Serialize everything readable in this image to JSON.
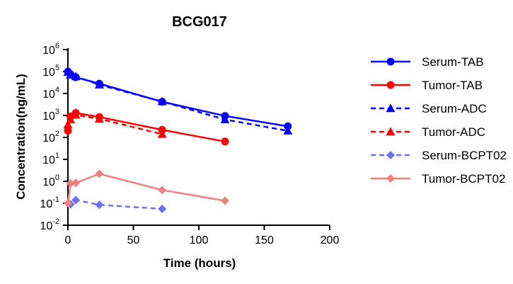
{
  "chart_data": {
    "type": "line",
    "title": "BCG017",
    "xlabel": "Time (hours)",
    "ylabel": "Concentration(ng/mL)",
    "xlim": [
      0,
      200
    ],
    "ylim": [
      0.01,
      1000000
    ],
    "yscale": "log",
    "x_ticks": [
      "0",
      "50",
      "100",
      "150",
      "200"
    ],
    "y_ticks": [
      {
        "base": "10",
        "exp": "-2"
      },
      {
        "base": "10",
        "exp": "-1"
      },
      {
        "base": "10",
        "exp": "0"
      },
      {
        "base": "10",
        "exp": "1"
      },
      {
        "base": "10",
        "exp": "2"
      },
      {
        "base": "10",
        "exp": "3"
      },
      {
        "base": "10",
        "exp": "4"
      },
      {
        "base": "10",
        "exp": "5"
      },
      {
        "base": "10",
        "exp": "6"
      }
    ],
    "legend_position": "right",
    "series": [
      {
        "name": "Serum-TAB",
        "color": "#0000ff",
        "marker": "circle",
        "line": "solid",
        "x": [
          0,
          2,
          6,
          24,
          72,
          120,
          168
        ],
        "y": [
          100000,
          75000,
          55000,
          28000,
          4200,
          950,
          320
        ]
      },
      {
        "name": "Tumor-TAB",
        "color": "#ff0000",
        "marker": "circle",
        "line": "solid",
        "x": [
          0,
          2,
          6,
          24,
          72,
          120
        ],
        "y": [
          200,
          900,
          1300,
          850,
          220,
          65
        ]
      },
      {
        "name": "Serum-ADC",
        "color": "#0000ff",
        "marker": "triangle",
        "line": "dashed",
        "x": [
          0,
          2,
          6,
          24,
          72,
          120,
          168
        ],
        "y": [
          95000,
          70000,
          60000,
          25000,
          4300,
          650,
          200
        ]
      },
      {
        "name": "Tumor-ADC",
        "color": "#ff0000",
        "marker": "triangle",
        "line": "dashed",
        "x": [
          0,
          2,
          6,
          24,
          72
        ],
        "y": [
          380,
          650,
          1050,
          700,
          140
        ]
      },
      {
        "name": "Serum-BCPT02",
        "color": "#6f6ff2",
        "marker": "diamond",
        "line": "dashed",
        "x": [
          0,
          2,
          6,
          24,
          72
        ],
        "y": [
          0.1,
          0.09,
          0.14,
          0.085,
          0.055
        ]
      },
      {
        "name": "Tumor-BCPT02",
        "color": "#f08080",
        "marker": "diamond",
        "line": "solid",
        "x": [
          0,
          2,
          6,
          24,
          72,
          120
        ],
        "y": [
          0.1,
          0.8,
          0.85,
          2.2,
          0.4,
          0.13
        ]
      }
    ]
  }
}
